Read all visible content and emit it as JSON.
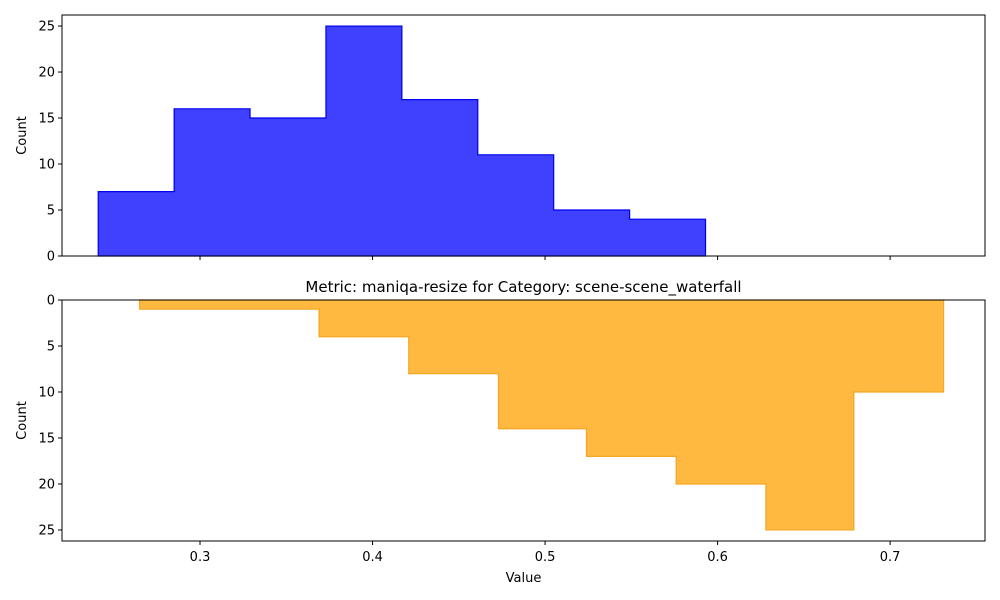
{
  "chart_data": [
    {
      "type": "histogram",
      "orientation": "up",
      "title": "",
      "xlabel": "",
      "ylabel": "Count",
      "xlim": [
        0.22,
        0.755
      ],
      "ylim": [
        0,
        26.2
      ],
      "yticks": [
        0,
        5,
        10,
        15,
        20,
        25
      ],
      "xticks": [
        0.3,
        0.4,
        0.5,
        0.6,
        0.7
      ],
      "xticklabels_visible": false,
      "bin_edges": [
        0.241,
        0.285,
        0.329,
        0.373,
        0.417,
        0.461,
        0.505,
        0.549,
        0.593
      ],
      "counts": [
        7,
        16,
        15,
        25,
        17,
        11,
        5,
        4
      ],
      "fill_color": "#4040ff",
      "edge_color": "#0000ee",
      "grid": false
    },
    {
      "type": "histogram",
      "orientation": "down",
      "title": "Metric: maniqa-resize for Category: scene-scene_waterfall",
      "xlabel": "Value",
      "ylabel": "Count",
      "xlim": [
        0.22,
        0.755
      ],
      "ylim": [
        0,
        26.2
      ],
      "yaxis_inverted": true,
      "yticks": [
        0,
        5,
        10,
        15,
        20,
        25
      ],
      "xticks": [
        0.3,
        0.4,
        0.5,
        0.6,
        0.7
      ],
      "xticklabels": [
        "0.3",
        "0.4",
        "0.5",
        "0.6",
        "0.7"
      ],
      "bin_edges": [
        0.265,
        0.317,
        0.369,
        0.421,
        0.473,
        0.524,
        0.576,
        0.628,
        0.679,
        0.731
      ],
      "counts": [
        1,
        1,
        4,
        8,
        14,
        17,
        20,
        25,
        10
      ],
      "fill_color": "#ffb840",
      "edge_color": "#f5a623",
      "grid": false
    }
  ]
}
